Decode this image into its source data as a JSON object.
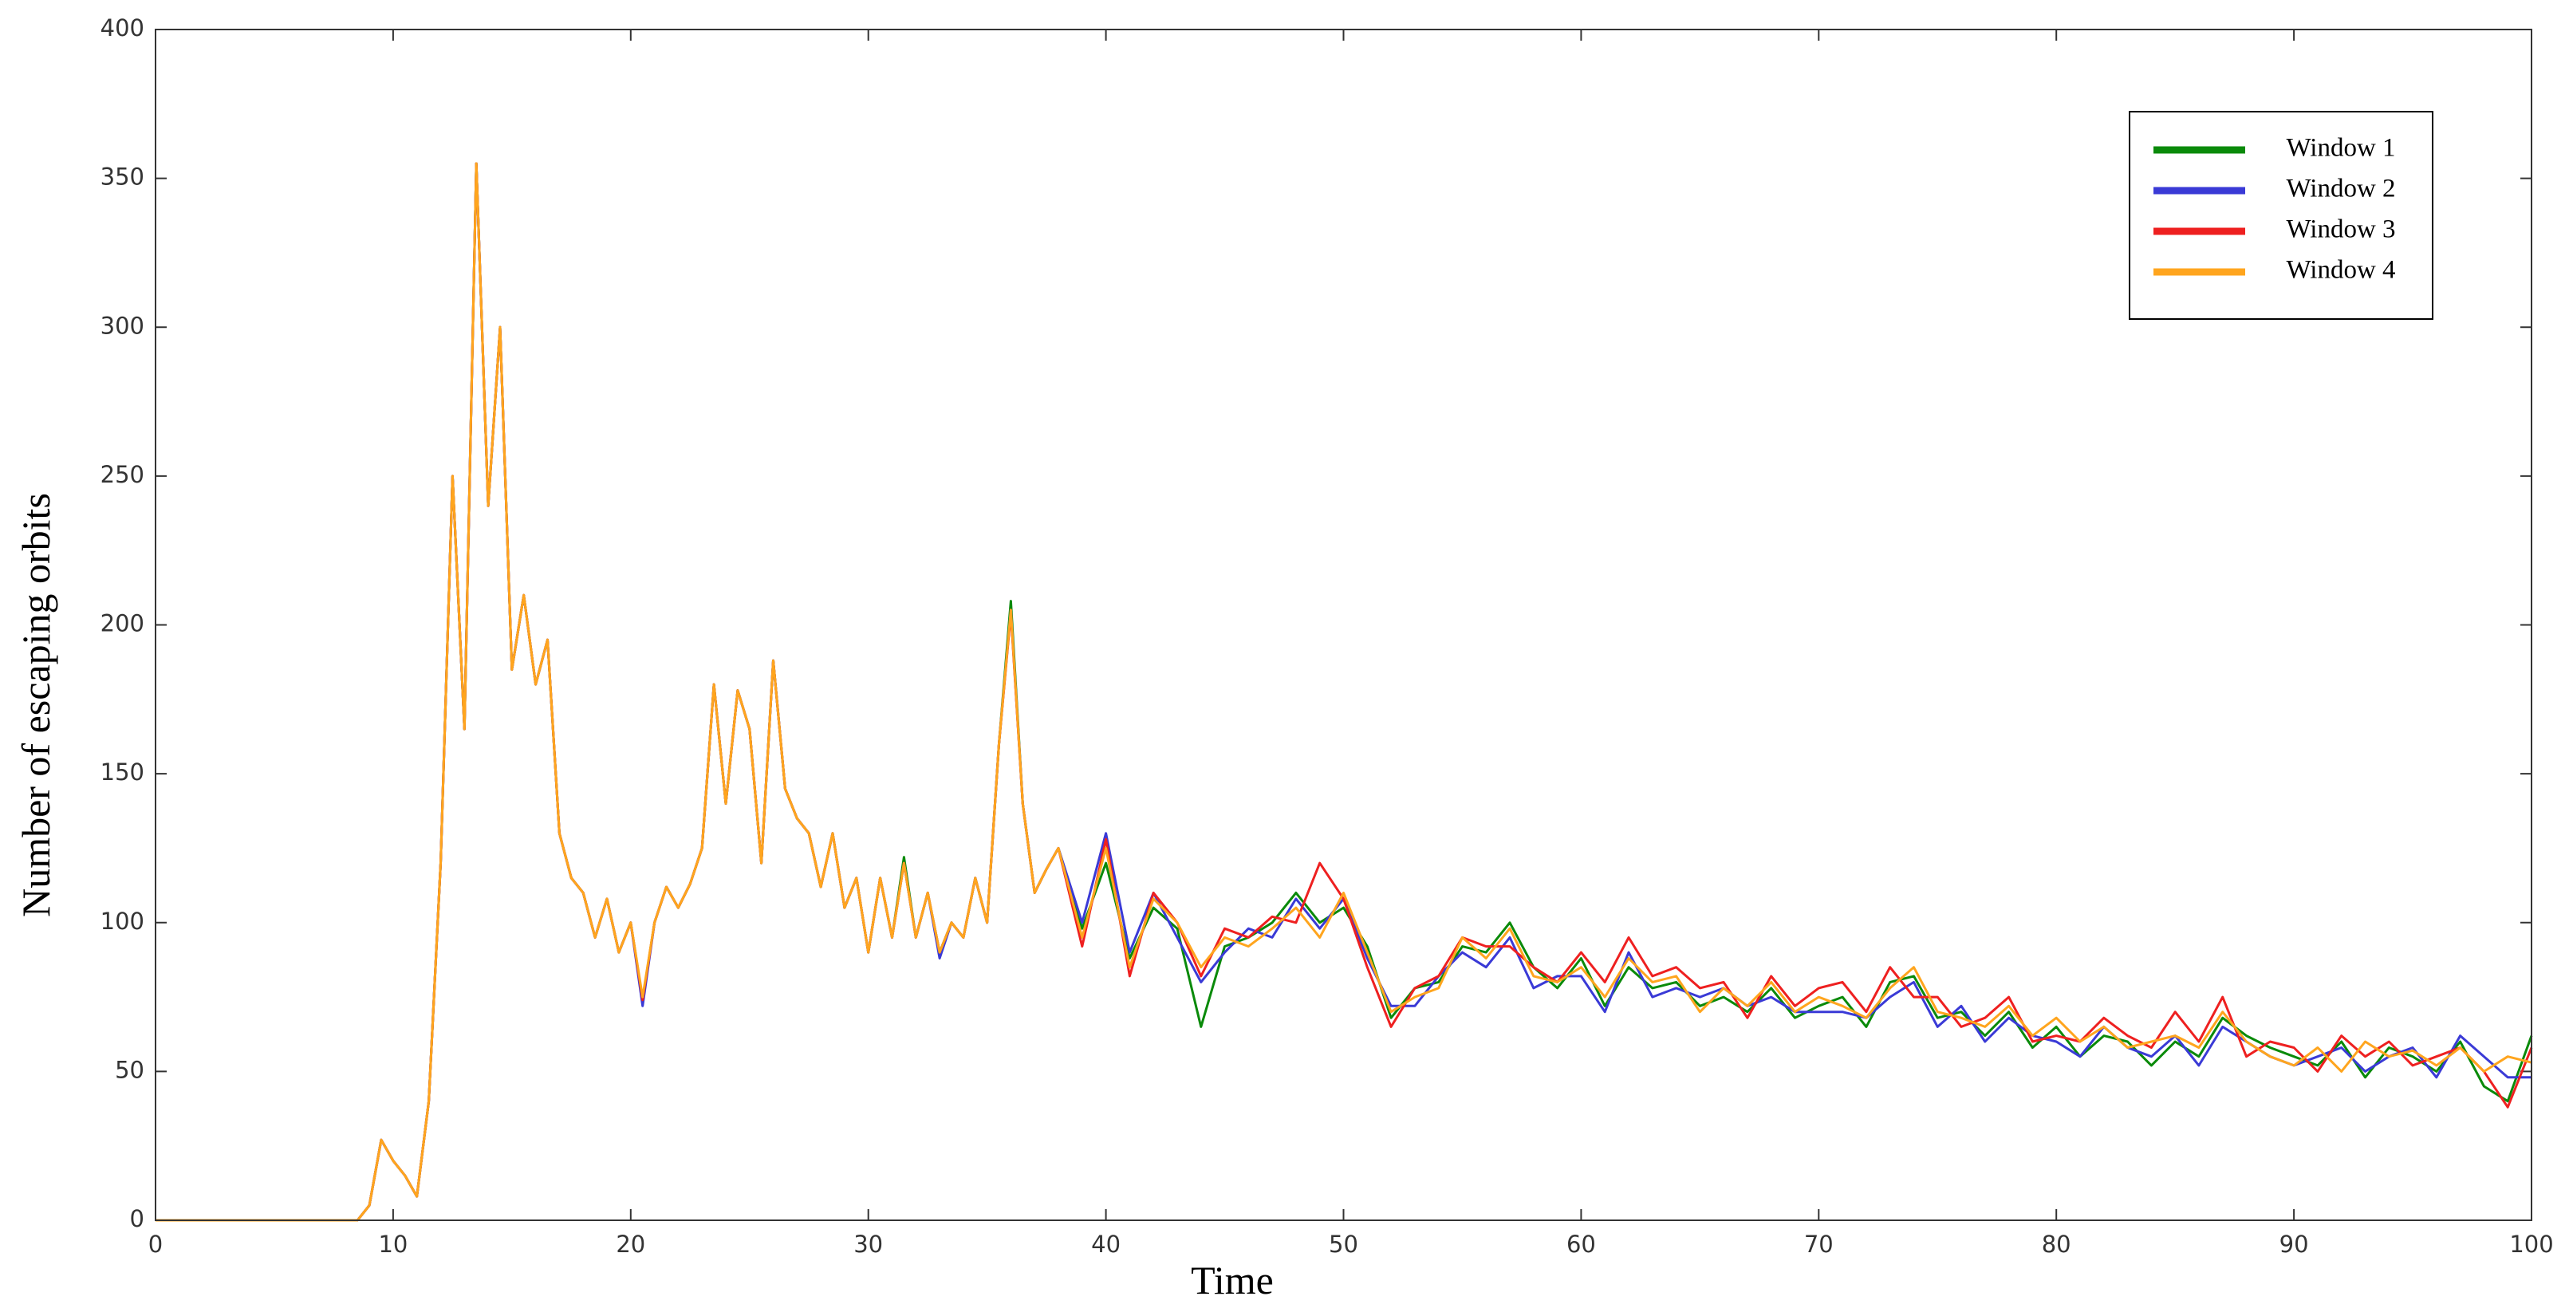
{
  "chart_data": {
    "type": "line",
    "xlabel": "Time",
    "ylabel": "Number of escaping orbits",
    "x": [
      0,
      1,
      2,
      3,
      4,
      5,
      6,
      7,
      8,
      8.5,
      9,
      9.5,
      10,
      10.5,
      11,
      11.5,
      12,
      12.5,
      13,
      13.5,
      14,
      14.5,
      15,
      15.5,
      16,
      16.5,
      17,
      17.5,
      18,
      18.5,
      19,
      19.5,
      20,
      20.5,
      21,
      21.5,
      22,
      22.5,
      23,
      23.5,
      24,
      24.5,
      25,
      25.5,
      26,
      26.5,
      27,
      27.5,
      28,
      28.5,
      29,
      29.5,
      30,
      30.5,
      31,
      31.5,
      32,
      32.5,
      33,
      33.5,
      34,
      34.5,
      35,
      35.5,
      36,
      36.5,
      37,
      37.5,
      38,
      39,
      40,
      41,
      42,
      43,
      44,
      45,
      46,
      47,
      48,
      49,
      50,
      51,
      52,
      53,
      54,
      55,
      56,
      57,
      58,
      59,
      60,
      61,
      62,
      63,
      64,
      65,
      66,
      67,
      68,
      69,
      70,
      71,
      72,
      73,
      74,
      75,
      76,
      77,
      78,
      79,
      80,
      81,
      82,
      83,
      84,
      85,
      86,
      87,
      88,
      89,
      90,
      91,
      92,
      93,
      94,
      95,
      96,
      97,
      98,
      99,
      100
    ],
    "series": [
      {
        "name": "Window 1",
        "color": "#0a8a0a",
        "values": [
          0,
          0,
          0,
          0,
          0,
          0,
          0,
          0,
          0,
          0,
          5,
          27,
          20,
          15,
          8,
          40,
          120,
          250,
          165,
          355,
          240,
          300,
          185,
          210,
          180,
          195,
          130,
          115,
          110,
          95,
          108,
          90,
          100,
          74,
          100,
          112,
          105,
          113,
          125,
          180,
          140,
          178,
          165,
          120,
          188,
          145,
          135,
          130,
          112,
          130,
          105,
          115,
          90,
          115,
          95,
          122,
          95,
          110,
          90,
          100,
          95,
          115,
          100,
          160,
          208,
          140,
          110,
          118,
          125,
          98,
          120,
          88,
          105,
          98,
          65,
          92,
          95,
          100,
          110,
          100,
          105,
          92,
          68,
          78,
          80,
          92,
          90,
          100,
          85,
          78,
          88,
          72,
          85,
          78,
          80,
          72,
          75,
          70,
          78,
          68,
          72,
          75,
          65,
          80,
          82,
          68,
          70,
          62,
          70,
          58,
          65,
          55,
          62,
          60,
          52,
          60,
          55,
          68,
          62,
          58,
          55,
          52,
          60,
          48,
          58,
          55,
          50,
          60,
          45,
          40,
          62
        ]
      },
      {
        "name": "Window 2",
        "color": "#3a3ad6",
        "values": [
          0,
          0,
          0,
          0,
          0,
          0,
          0,
          0,
          0,
          0,
          5,
          27,
          20,
          15,
          8,
          40,
          120,
          250,
          165,
          355,
          240,
          300,
          185,
          210,
          180,
          195,
          130,
          115,
          110,
          95,
          108,
          90,
          100,
          72,
          100,
          112,
          105,
          113,
          125,
          180,
          140,
          178,
          165,
          120,
          188,
          145,
          135,
          130,
          112,
          130,
          105,
          115,
          90,
          115,
          95,
          120,
          95,
          110,
          88,
          100,
          95,
          115,
          100,
          160,
          205,
          140,
          110,
          118,
          125,
          100,
          130,
          90,
          110,
          95,
          80,
          90,
          98,
          95,
          108,
          98,
          108,
          88,
          72,
          72,
          82,
          90,
          85,
          95,
          78,
          82,
          82,
          70,
          90,
          75,
          78,
          75,
          78,
          72,
          75,
          70,
          70,
          70,
          68,
          75,
          80,
          65,
          72,
          60,
          68,
          62,
          60,
          55,
          65,
          58,
          55,
          62,
          52,
          65,
          60,
          55,
          52,
          55,
          58,
          50,
          55,
          58,
          48,
          62,
          55,
          48,
          48
        ]
      },
      {
        "name": "Window 3",
        "color": "#ee2020",
        "values": [
          0,
          0,
          0,
          0,
          0,
          0,
          0,
          0,
          0,
          0,
          5,
          27,
          20,
          15,
          8,
          40,
          120,
          250,
          165,
          355,
          240,
          300,
          185,
          210,
          180,
          195,
          130,
          115,
          110,
          95,
          108,
          90,
          100,
          74,
          100,
          112,
          105,
          113,
          125,
          180,
          140,
          178,
          165,
          120,
          188,
          145,
          135,
          130,
          112,
          130,
          105,
          115,
          90,
          115,
          95,
          120,
          95,
          110,
          90,
          100,
          95,
          115,
          100,
          160,
          204,
          140,
          110,
          118,
          125,
          92,
          128,
          82,
          110,
          100,
          82,
          98,
          95,
          102,
          100,
          120,
          108,
          85,
          65,
          78,
          82,
          95,
          92,
          92,
          85,
          80,
          90,
          80,
          95,
          82,
          85,
          78,
          80,
          68,
          82,
          72,
          78,
          80,
          70,
          85,
          75,
          75,
          65,
          68,
          75,
          60,
          62,
          60,
          68,
          62,
          58,
          70,
          60,
          75,
          55,
          60,
          58,
          50,
          62,
          55,
          60,
          52,
          55,
          58,
          50,
          38,
          58
        ]
      },
      {
        "name": "Window 4",
        "color": "#ffa51e",
        "values": [
          0,
          0,
          0,
          0,
          0,
          0,
          0,
          0,
          0,
          0,
          5,
          27,
          20,
          15,
          8,
          40,
          120,
          250,
          165,
          355,
          240,
          300,
          185,
          210,
          180,
          195,
          130,
          115,
          110,
          95,
          108,
          90,
          100,
          75,
          100,
          112,
          105,
          113,
          125,
          180,
          140,
          178,
          165,
          120,
          188,
          145,
          135,
          130,
          112,
          130,
          105,
          115,
          90,
          115,
          95,
          120,
          95,
          110,
          90,
          100,
          95,
          115,
          100,
          160,
          205,
          140,
          110,
          118,
          125,
          95,
          125,
          85,
          108,
          100,
          85,
          95,
          92,
          98,
          105,
          95,
          110,
          90,
          70,
          75,
          78,
          95,
          88,
          98,
          82,
          80,
          85,
          75,
          88,
          80,
          82,
          70,
          78,
          72,
          80,
          70,
          75,
          72,
          68,
          78,
          85,
          70,
          68,
          65,
          72,
          62,
          68,
          60,
          65,
          58,
          60,
          62,
          58,
          70,
          60,
          55,
          52,
          58,
          50,
          60,
          55,
          57,
          52,
          58,
          50,
          55,
          53
        ]
      }
    ],
    "xlim": [
      0,
      100
    ],
    "xticks": [
      0,
      10,
      20,
      30,
      40,
      50,
      60,
      70,
      80,
      90,
      100
    ],
    "ylim": [
      0,
      400
    ],
    "yticks": [
      0,
      50,
      100,
      150,
      200,
      250,
      300,
      350,
      400
    ],
    "legend": "upper right",
    "grid": false
  }
}
